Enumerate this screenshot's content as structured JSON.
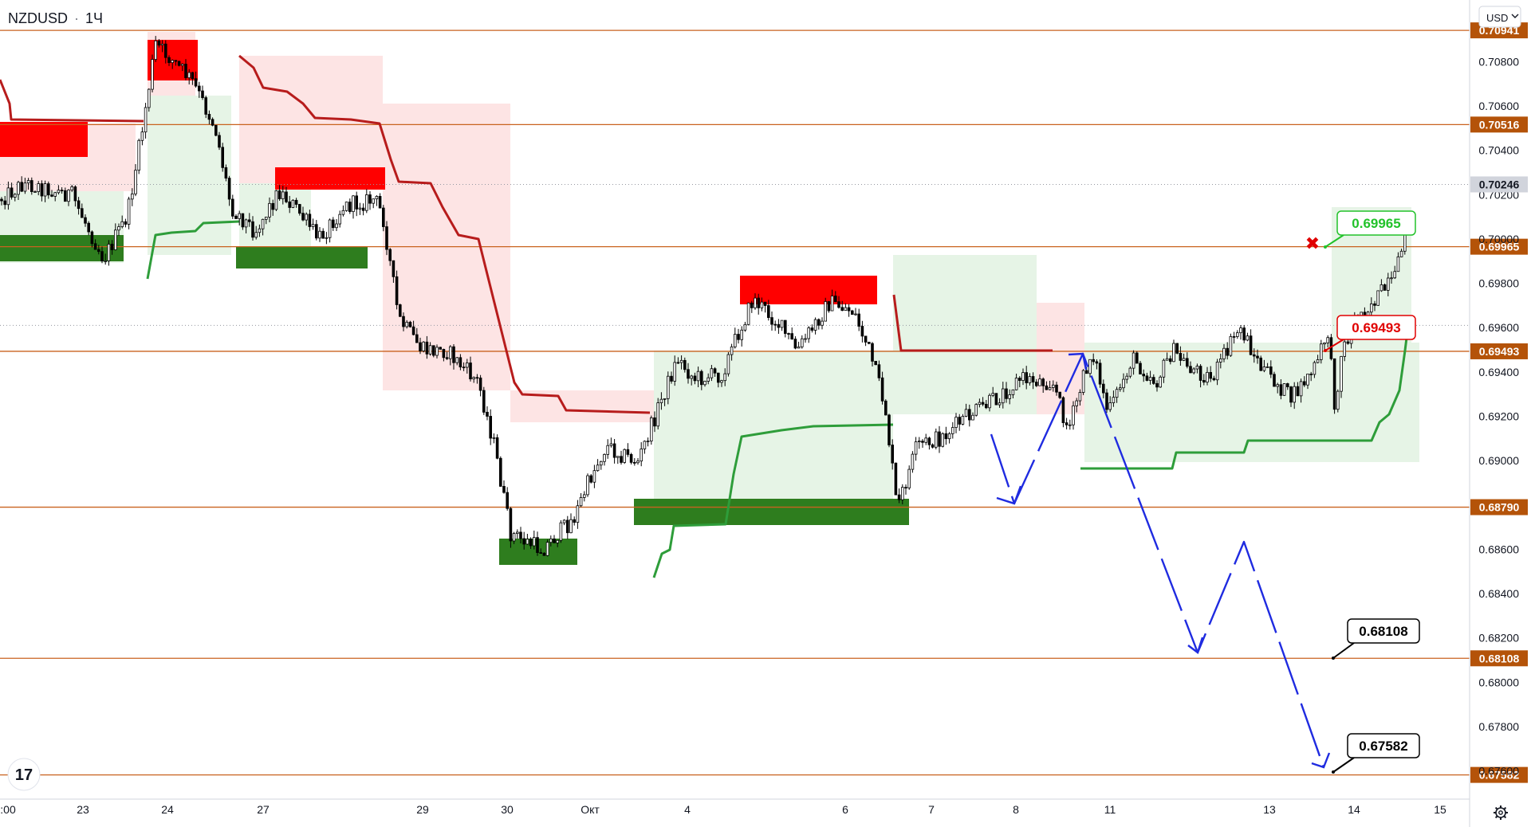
{
  "header": {
    "symbol": "NZDUSD",
    "separator": "·",
    "interval": "1Ч"
  },
  "currency_button": "USD",
  "colors": {
    "level_line": "#c9621f",
    "level_tag_bg": "#b45309",
    "resistance": "#ff0000",
    "support": "#2e7d1e",
    "trail_red": "#b71c1c",
    "trail_green": "#2e9d3a",
    "fill_red": "#fde4e4",
    "fill_green": "#e6f4e6",
    "forecast": "#1f2be0",
    "last_price_bg": "#d1d4dc"
  },
  "chart_data": {
    "type": "candlestick",
    "y_range": [
      0.6748,
      0.7106
    ],
    "y_ticks": [
      "0.70800",
      "0.70600",
      "0.70400",
      "0.70200",
      "0.70000",
      "0.69800",
      "0.69600",
      "0.69400",
      "0.69200",
      "0.69000",
      "0.68600",
      "0.68400",
      "0.68200",
      "0.68000",
      "0.67800",
      "0.67600"
    ],
    "x_ticks": [
      ":00",
      "23",
      "24",
      "27",
      "29",
      "30",
      "Окт",
      "4",
      "6",
      "7",
      "8",
      "11",
      "13",
      "14",
      "15"
    ],
    "last_price": "0.70246",
    "levels": [
      {
        "value": 0.70941,
        "label": "0.70941"
      },
      {
        "value": 0.70516,
        "label": "0.70516"
      },
      {
        "value": 0.69965,
        "label": "0.69965"
      },
      {
        "value": 0.69493,
        "label": "0.69493"
      },
      {
        "value": 0.6879,
        "label": "0.68790"
      },
      {
        "value": 0.68108,
        "label": "0.68108"
      },
      {
        "value": 0.67582,
        "label": "0.67582"
      }
    ],
    "callouts": [
      {
        "text": "0.69965",
        "style": "green"
      },
      {
        "text": "0.69493",
        "style": "red"
      },
      {
        "text": "0.68108",
        "style": "black"
      },
      {
        "text": "0.67582",
        "style": "black"
      }
    ],
    "marker": "✖"
  }
}
